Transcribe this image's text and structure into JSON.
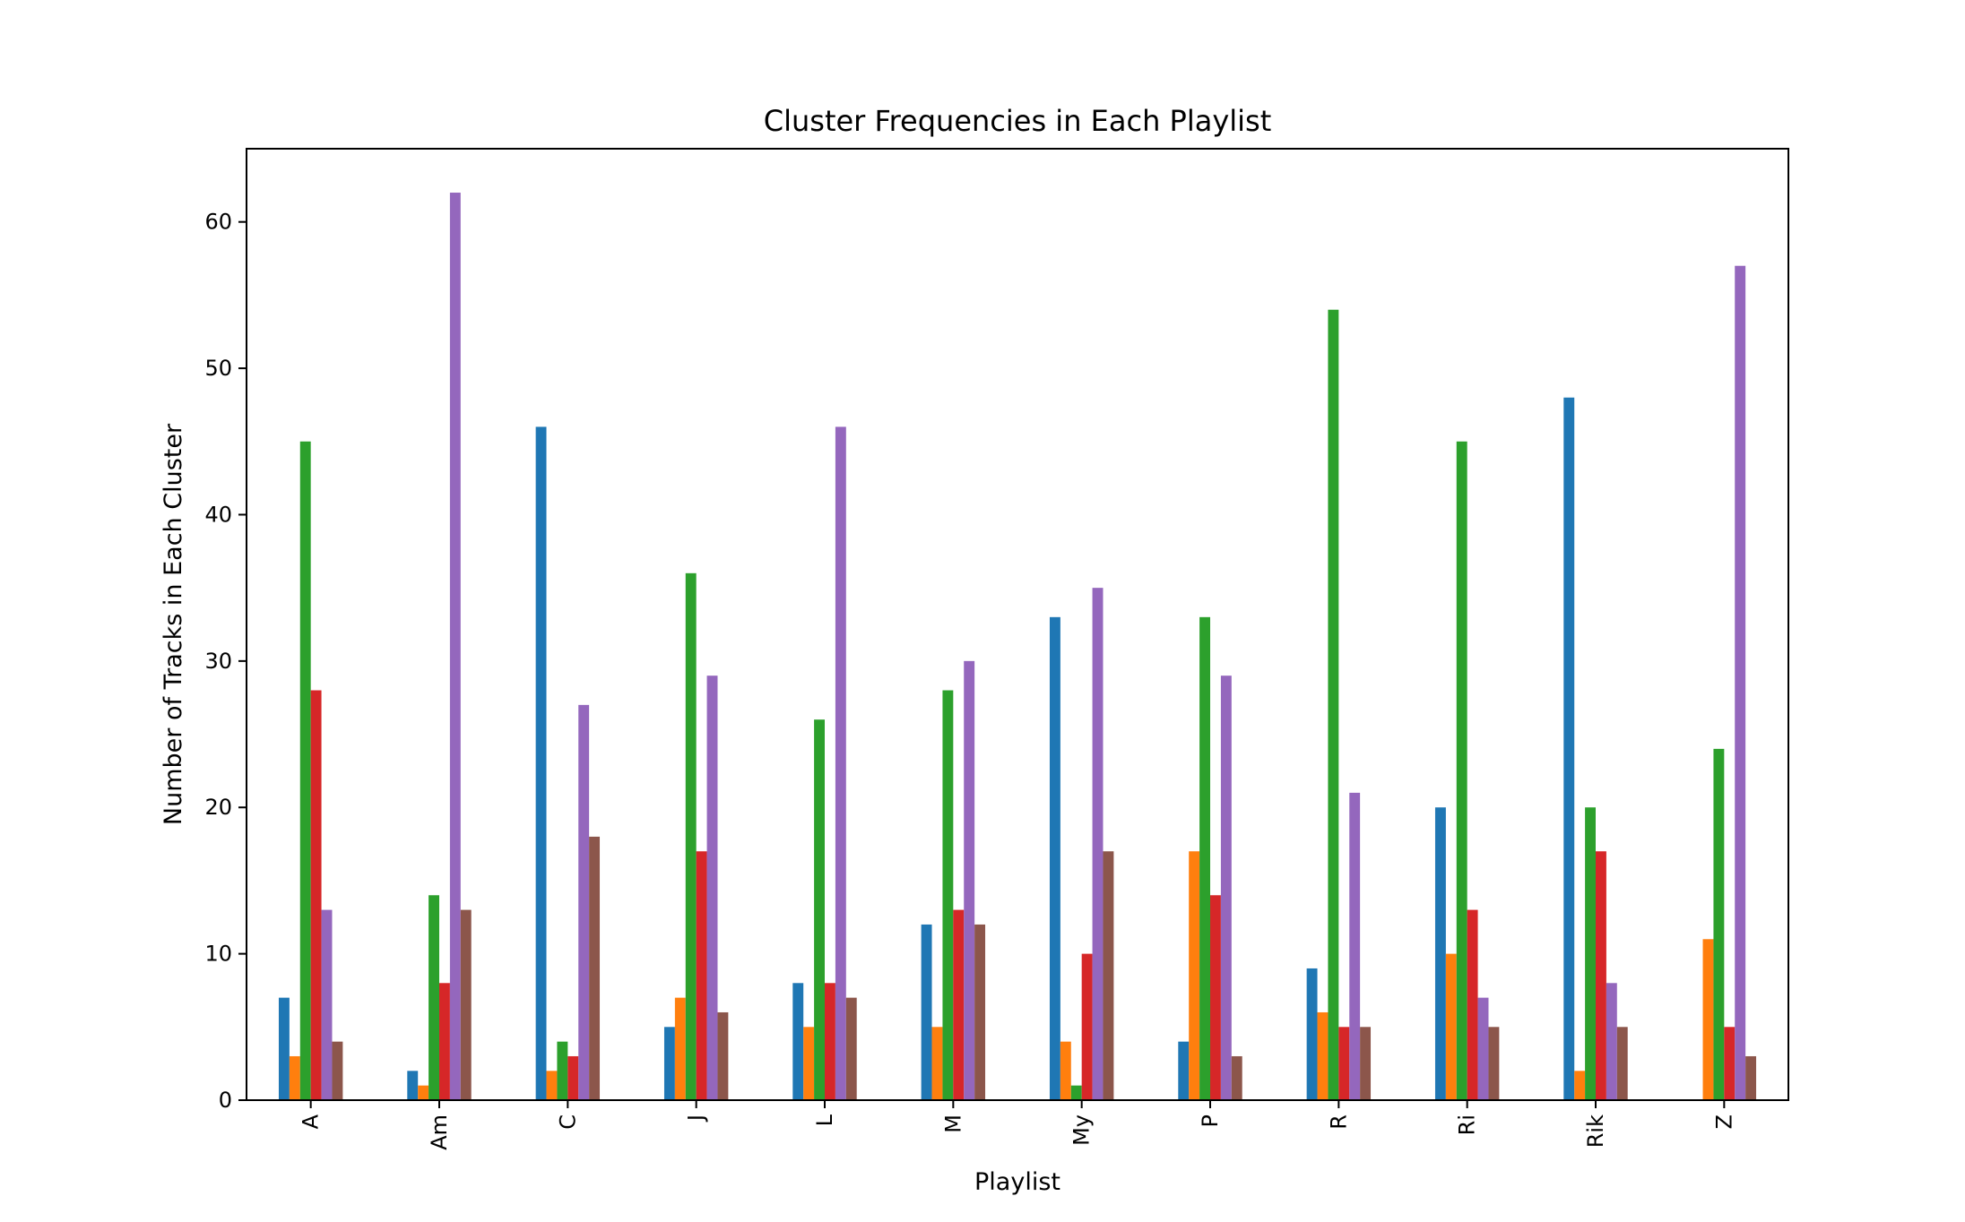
{
  "chart_data": {
    "type": "bar",
    "title": "Cluster Frequencies in Each Playlist",
    "xlabel": "Playlist",
    "ylabel": "Number of Tracks in Each Cluster",
    "ylim": [
      0,
      65
    ],
    "yticks": [
      0,
      10,
      20,
      30,
      40,
      50,
      60
    ],
    "grid": false,
    "legend": "none",
    "categories": [
      "A",
      "Am",
      "C",
      "J",
      "L",
      "M",
      "My",
      "P",
      "R",
      "Ri",
      "Rik",
      "Z"
    ],
    "series": [
      {
        "color": "#1f77b4",
        "values": [
          7,
          2,
          46,
          5,
          8,
          12,
          33,
          4,
          9,
          20,
          48,
          0
        ]
      },
      {
        "color": "#ff7f0e",
        "values": [
          3,
          1,
          2,
          7,
          5,
          5,
          4,
          17,
          6,
          10,
          2,
          11
        ]
      },
      {
        "color": "#2ca02c",
        "values": [
          45,
          14,
          4,
          36,
          26,
          28,
          1,
          33,
          54,
          45,
          20,
          24
        ]
      },
      {
        "color": "#d62728",
        "values": [
          28,
          8,
          3,
          17,
          8,
          13,
          10,
          14,
          5,
          13,
          17,
          5
        ]
      },
      {
        "color": "#9467bd",
        "values": [
          13,
          62,
          27,
          29,
          46,
          30,
          35,
          29,
          21,
          7,
          8,
          57
        ]
      },
      {
        "color": "#8c564b",
        "values": [
          4,
          13,
          18,
          6,
          7,
          12,
          17,
          3,
          5,
          5,
          5,
          3
        ]
      }
    ]
  }
}
